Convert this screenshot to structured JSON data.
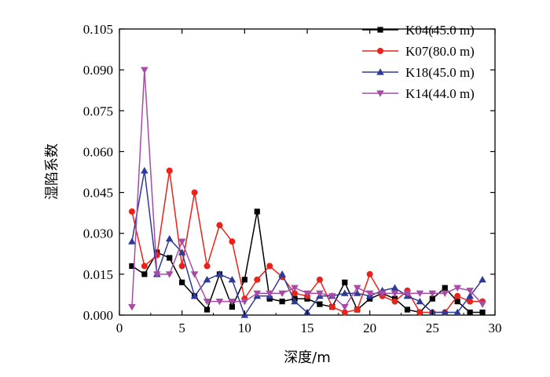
{
  "chart_data": {
    "type": "line",
    "title": "",
    "xlabel": "深度/m",
    "ylabel": "湿陷系数",
    "xlim": [
      0,
      30
    ],
    "ylim": [
      0,
      0.105
    ],
    "xticks": [
      0,
      5,
      10,
      15,
      20,
      25,
      30
    ],
    "yticks": [
      0.0,
      0.015,
      0.03,
      0.045,
      0.06,
      0.075,
      0.09,
      0.105
    ],
    "ytick_labels": [
      "0.000",
      "0.015",
      "0.030",
      "0.045",
      "0.060",
      "0.075",
      "0.090",
      "0.105"
    ],
    "legend_position": "top-right",
    "grid": false,
    "series": [
      {
        "name": "K04(45.0 m)",
        "color": "#000000",
        "marker": "square",
        "x": [
          1,
          2,
          3,
          4,
          5,
          6,
          7,
          8,
          9,
          10,
          11,
          12,
          13,
          14,
          15,
          16,
          17,
          18,
          19,
          20,
          21,
          22,
          23,
          24,
          25,
          26,
          27,
          28,
          29
        ],
        "values": [
          0.018,
          0.015,
          0.023,
          0.021,
          0.012,
          0.007,
          0.002,
          0.015,
          0.003,
          0.013,
          0.038,
          0.006,
          0.005,
          0.006,
          0.006,
          0.004,
          0.003,
          0.012,
          0.002,
          0.006,
          0.008,
          0.006,
          0.002,
          0.001,
          0.006,
          0.01,
          0.005,
          0.001,
          0.001
        ]
      },
      {
        "name": "K07(80.0 m)",
        "color": "#e8231a",
        "marker": "circle",
        "x": [
          1,
          2,
          3,
          4,
          5,
          6,
          7,
          8,
          9,
          10,
          11,
          12,
          13,
          14,
          15,
          16,
          17,
          18,
          19,
          20,
          21,
          22,
          23,
          24,
          25,
          26,
          27,
          28,
          29
        ],
        "values": [
          0.038,
          0.018,
          0.022,
          0.053,
          0.018,
          0.045,
          0.018,
          0.033,
          0.027,
          0.006,
          0.013,
          0.018,
          0.014,
          0.008,
          0.007,
          0.013,
          0.003,
          0.001,
          0.002,
          0.015,
          0.007,
          0.005,
          0.009,
          0.001,
          0.001,
          0.001,
          0.007,
          0.005,
          0.005
        ]
      },
      {
        "name": "K18(45.0 m)",
        "color": "#2e3a97",
        "marker": "triangle-up",
        "x": [
          1,
          2,
          3,
          4,
          5,
          6,
          7,
          8,
          9,
          10,
          11,
          12,
          13,
          14,
          15,
          16,
          17,
          18,
          19,
          20,
          21,
          22,
          23,
          24,
          25,
          26,
          27,
          28,
          29
        ],
        "values": [
          0.027,
          0.053,
          0.015,
          0.028,
          0.023,
          0.007,
          0.013,
          0.015,
          0.013,
          0.0,
          0.007,
          0.007,
          0.015,
          0.005,
          0.001,
          0.007,
          0.007,
          0.008,
          0.008,
          0.007,
          0.009,
          0.01,
          0.007,
          0.005,
          0.001,
          0.001,
          0.001,
          0.007,
          0.013
        ]
      },
      {
        "name": "K14(44.0 m)",
        "color": "#a64ca6",
        "marker": "triangle-down",
        "x": [
          1,
          2,
          3,
          4,
          5,
          6,
          7,
          8,
          9,
          10,
          11,
          12,
          13,
          14,
          15,
          16,
          17,
          18,
          19,
          20,
          21,
          22,
          23,
          24,
          25,
          26,
          27,
          28,
          29
        ],
        "values": [
          0.003,
          0.09,
          0.015,
          0.015,
          0.027,
          0.015,
          0.005,
          0.005,
          0.005,
          0.005,
          0.008,
          0.008,
          0.008,
          0.01,
          0.008,
          0.008,
          0.007,
          0.003,
          0.01,
          0.008,
          0.008,
          0.008,
          0.008,
          0.008,
          0.008,
          0.008,
          0.01,
          0.009,
          0.004
        ]
      }
    ]
  }
}
